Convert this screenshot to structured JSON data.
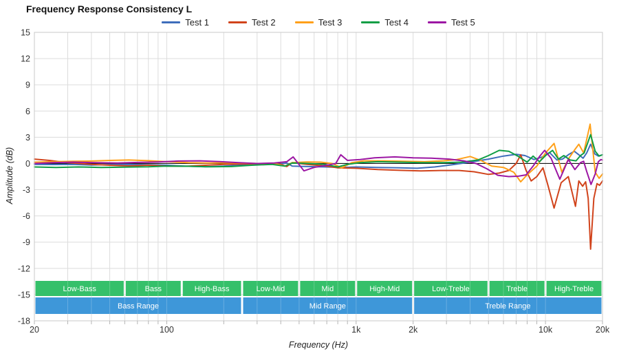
{
  "chart_data": {
    "type": "line",
    "title": "Frequency Response Consistency L",
    "xlabel": "Frequency (Hz)",
    "ylabel": "Amplitude (dB)",
    "x_scale": "log",
    "xlim": [
      20,
      20000
    ],
    "ylim": [
      -18,
      15
    ],
    "grid": true,
    "legend_position": "top-center",
    "y_ticks": [
      15,
      12,
      9,
      6,
      3,
      0,
      -3,
      -6,
      -9,
      -12,
      -15,
      -18
    ],
    "x_ticks": [
      {
        "f": 20,
        "label": "20"
      },
      {
        "f": 100,
        "label": "100"
      },
      {
        "f": 1000,
        "label": "1k"
      },
      {
        "f": 2000,
        "label": "2k"
      },
      {
        "f": 10000,
        "label": "10k"
      },
      {
        "f": 20000,
        "label": "20k"
      }
    ],
    "zero_line_color": "#111111",
    "grid_color": "#dcdcdc",
    "series": [
      {
        "name": "Test 1",
        "color": "#3e6dbb",
        "points": [
          [
            20,
            -0.1
          ],
          [
            25,
            -0.12
          ],
          [
            32,
            -0.1
          ],
          [
            40,
            -0.18
          ],
          [
            50,
            -0.12
          ],
          [
            63,
            -0.1
          ],
          [
            80,
            -0.14
          ],
          [
            100,
            -0.2
          ],
          [
            125,
            -0.3
          ],
          [
            160,
            -0.38
          ],
          [
            200,
            -0.3
          ],
          [
            250,
            -0.18
          ],
          [
            320,
            -0.12
          ],
          [
            400,
            -0.05
          ],
          [
            430,
            0.05
          ],
          [
            460,
            -0.3
          ],
          [
            550,
            -0.35
          ],
          [
            700,
            -0.4
          ],
          [
            850,
            -0.45
          ],
          [
            1000,
            -0.4
          ],
          [
            1300,
            -0.45
          ],
          [
            1700,
            -0.5
          ],
          [
            2100,
            -0.55
          ],
          [
            2600,
            -0.4
          ],
          [
            3200,
            -0.15
          ],
          [
            4000,
            0.15
          ],
          [
            5000,
            0.5
          ],
          [
            6000,
            0.85
          ],
          [
            7000,
            1.05
          ],
          [
            7800,
            0.9
          ],
          [
            8700,
            0.45
          ],
          [
            9500,
            0.7
          ],
          [
            10500,
            1.25
          ],
          [
            11500,
            0.4
          ],
          [
            12300,
            0.5
          ],
          [
            13200,
            1.0
          ],
          [
            14200,
            1.4
          ],
          [
            15000,
            1.0
          ],
          [
            15800,
            0.6
          ],
          [
            16500,
            1.2
          ],
          [
            17300,
            2.2
          ],
          [
            18200,
            1.1
          ],
          [
            19000,
            0.85
          ],
          [
            20000,
            1.0
          ]
        ]
      },
      {
        "name": "Test 2",
        "color": "#d1431b",
        "points": [
          [
            20,
            0.5
          ],
          [
            24,
            0.35
          ],
          [
            30,
            0.1
          ],
          [
            40,
            -0.1
          ],
          [
            50,
            -0.2
          ],
          [
            63,
            -0.28
          ],
          [
            80,
            -0.2
          ],
          [
            100,
            -0.3
          ],
          [
            125,
            -0.32
          ],
          [
            160,
            -0.2
          ],
          [
            200,
            -0.1
          ],
          [
            250,
            -0.05
          ],
          [
            320,
            0.0
          ],
          [
            400,
            -0.1
          ],
          [
            430,
            -0.35
          ],
          [
            460,
            0.1
          ],
          [
            550,
            -0.1
          ],
          [
            700,
            -0.3
          ],
          [
            800,
            -0.5
          ],
          [
            1000,
            -0.55
          ],
          [
            1300,
            -0.7
          ],
          [
            1700,
            -0.78
          ],
          [
            2200,
            -0.85
          ],
          [
            2800,
            -0.8
          ],
          [
            3500,
            -0.8
          ],
          [
            4200,
            -0.95
          ],
          [
            5000,
            -1.25
          ],
          [
            5700,
            -1.1
          ],
          [
            6400,
            -0.8
          ],
          [
            7000,
            0.0
          ],
          [
            7400,
            1.0
          ],
          [
            7900,
            -0.8
          ],
          [
            8400,
            -2.0
          ],
          [
            9000,
            -1.5
          ],
          [
            9700,
            -0.5
          ],
          [
            10300,
            -2.5
          ],
          [
            11100,
            -5.1
          ],
          [
            12100,
            -2.2
          ],
          [
            13200,
            -1.5
          ],
          [
            14400,
            -4.9
          ],
          [
            15000,
            -2.0
          ],
          [
            15700,
            -2.6
          ],
          [
            16300,
            -2.1
          ],
          [
            16800,
            -4.0
          ],
          [
            17300,
            -9.8
          ],
          [
            18000,
            -4.0
          ],
          [
            18700,
            -2.3
          ],
          [
            19300,
            -2.5
          ],
          [
            20000,
            -2.0
          ]
        ]
      },
      {
        "name": "Test 3",
        "color": "#ffa019",
        "points": [
          [
            20,
            0.15
          ],
          [
            25,
            0.2
          ],
          [
            32,
            0.25
          ],
          [
            40,
            0.28
          ],
          [
            50,
            0.35
          ],
          [
            63,
            0.4
          ],
          [
            80,
            0.32
          ],
          [
            100,
            0.2
          ],
          [
            130,
            0.1
          ],
          [
            170,
            0.05
          ],
          [
            220,
            0.08
          ],
          [
            300,
            0.0
          ],
          [
            380,
            -0.05
          ],
          [
            420,
            -0.3
          ],
          [
            460,
            0.1
          ],
          [
            550,
            0.18
          ],
          [
            650,
            0.15
          ],
          [
            750,
            0.0
          ],
          [
            840,
            -0.5
          ],
          [
            950,
            0.1
          ],
          [
            1100,
            0.3
          ],
          [
            1400,
            0.3
          ],
          [
            1800,
            0.25
          ],
          [
            2300,
            0.2
          ],
          [
            2900,
            0.3
          ],
          [
            3400,
            0.45
          ],
          [
            4000,
            0.8
          ],
          [
            4600,
            0.3
          ],
          [
            5200,
            -0.3
          ],
          [
            6000,
            -0.45
          ],
          [
            6800,
            -1.0
          ],
          [
            7400,
            -2.1
          ],
          [
            8000,
            -1.3
          ],
          [
            9000,
            -0.3
          ],
          [
            10000,
            1.2
          ],
          [
            11100,
            2.3
          ],
          [
            12200,
            -1.0
          ],
          [
            13300,
            0.6
          ],
          [
            14300,
            1.6
          ],
          [
            15000,
            2.2
          ],
          [
            15900,
            1.2
          ],
          [
            17200,
            4.5
          ],
          [
            18300,
            -1.0
          ],
          [
            19200,
            -1.7
          ],
          [
            20000,
            -1.2
          ]
        ]
      },
      {
        "name": "Test 4",
        "color": "#0f9e45",
        "points": [
          [
            20,
            -0.4
          ],
          [
            26,
            -0.45
          ],
          [
            34,
            -0.4
          ],
          [
            45,
            -0.45
          ],
          [
            60,
            -0.42
          ],
          [
            80,
            -0.38
          ],
          [
            100,
            -0.3
          ],
          [
            130,
            -0.32
          ],
          [
            170,
            -0.38
          ],
          [
            220,
            -0.35
          ],
          [
            280,
            -0.2
          ],
          [
            360,
            -0.1
          ],
          [
            420,
            -0.3
          ],
          [
            460,
            0.05
          ],
          [
            560,
            0.0
          ],
          [
            680,
            -0.1
          ],
          [
            800,
            -0.4
          ],
          [
            900,
            -0.1
          ],
          [
            1050,
            0.1
          ],
          [
            1300,
            0.2
          ],
          [
            1700,
            0.15
          ],
          [
            2200,
            0.1
          ],
          [
            2900,
            0.1
          ],
          [
            3600,
            0.15
          ],
          [
            4400,
            0.4
          ],
          [
            5000,
            0.9
          ],
          [
            5700,
            1.5
          ],
          [
            6400,
            1.4
          ],
          [
            7200,
            0.8
          ],
          [
            8000,
            0.15
          ],
          [
            8600,
            0.85
          ],
          [
            9300,
            0.2
          ],
          [
            10000,
            0.9
          ],
          [
            10900,
            1.5
          ],
          [
            11700,
            0.5
          ],
          [
            12500,
            0.9
          ],
          [
            13500,
            0.4
          ],
          [
            14500,
            0.3
          ],
          [
            15300,
            0.9
          ],
          [
            16000,
            1.2
          ],
          [
            17300,
            3.3
          ],
          [
            18300,
            1.4
          ],
          [
            19200,
            0.85
          ],
          [
            20000,
            1.0
          ]
        ]
      },
      {
        "name": "Test 5",
        "color": "#9c16a3",
        "points": [
          [
            20,
            0.0
          ],
          [
            25,
            0.1
          ],
          [
            32,
            0.15
          ],
          [
            42,
            0.1
          ],
          [
            55,
            0.05
          ],
          [
            70,
            0.12
          ],
          [
            90,
            0.18
          ],
          [
            115,
            0.28
          ],
          [
            150,
            0.3
          ],
          [
            190,
            0.22
          ],
          [
            240,
            0.1
          ],
          [
            300,
            0.0
          ],
          [
            370,
            0.05
          ],
          [
            430,
            0.2
          ],
          [
            465,
            0.75
          ],
          [
            530,
            -0.85
          ],
          [
            600,
            -0.45
          ],
          [
            700,
            -0.2
          ],
          [
            780,
            0.0
          ],
          [
            830,
            1.0
          ],
          [
            900,
            0.35
          ],
          [
            1050,
            0.45
          ],
          [
            1250,
            0.65
          ],
          [
            1600,
            0.75
          ],
          [
            2000,
            0.65
          ],
          [
            2500,
            0.6
          ],
          [
            3100,
            0.5
          ],
          [
            3700,
            0.3
          ],
          [
            4300,
            0.0
          ],
          [
            4900,
            -0.6
          ],
          [
            5600,
            -1.35
          ],
          [
            6400,
            -1.5
          ],
          [
            7200,
            -1.45
          ],
          [
            7900,
            -1.3
          ],
          [
            8600,
            -0.3
          ],
          [
            9300,
            0.8
          ],
          [
            9900,
            1.5
          ],
          [
            10700,
            0.6
          ],
          [
            11900,
            -1.8
          ],
          [
            13200,
            0.45
          ],
          [
            14300,
            -0.7
          ],
          [
            15300,
            0.1
          ],
          [
            15900,
            0.25
          ],
          [
            16500,
            -0.9
          ],
          [
            17400,
            -2.4
          ],
          [
            18300,
            -1.2
          ],
          [
            19000,
            0.2
          ],
          [
            19600,
            0.45
          ],
          [
            20000,
            0.4
          ]
        ]
      }
    ],
    "bands": {
      "sub_band_color": "#35c06a",
      "range_color": "#3e97d9",
      "label_color": "#ffffff",
      "sub_bands": [
        {
          "label": "Low-Bass",
          "from": 20,
          "to": 60
        },
        {
          "label": "Bass",
          "from": 60,
          "to": 120
        },
        {
          "label": "High-Bass",
          "from": 120,
          "to": 250
        },
        {
          "label": "Low-Mid",
          "from": 250,
          "to": 500
        },
        {
          "label": "Mid",
          "from": 500,
          "to": 1000
        },
        {
          "label": "High-Mid",
          "from": 1000,
          "to": 2000
        },
        {
          "label": "Low-Treble",
          "from": 2000,
          "to": 5000
        },
        {
          "label": "Treble",
          "from": 5000,
          "to": 10000
        },
        {
          "label": "High-Treble",
          "from": 10000,
          "to": 20000
        }
      ],
      "ranges": [
        {
          "label": "Bass Range",
          "from": 20,
          "to": 250
        },
        {
          "label": "Mid Range",
          "from": 250,
          "to": 2000
        },
        {
          "label": "Treble Range",
          "from": 2000,
          "to": 20000
        }
      ]
    }
  }
}
